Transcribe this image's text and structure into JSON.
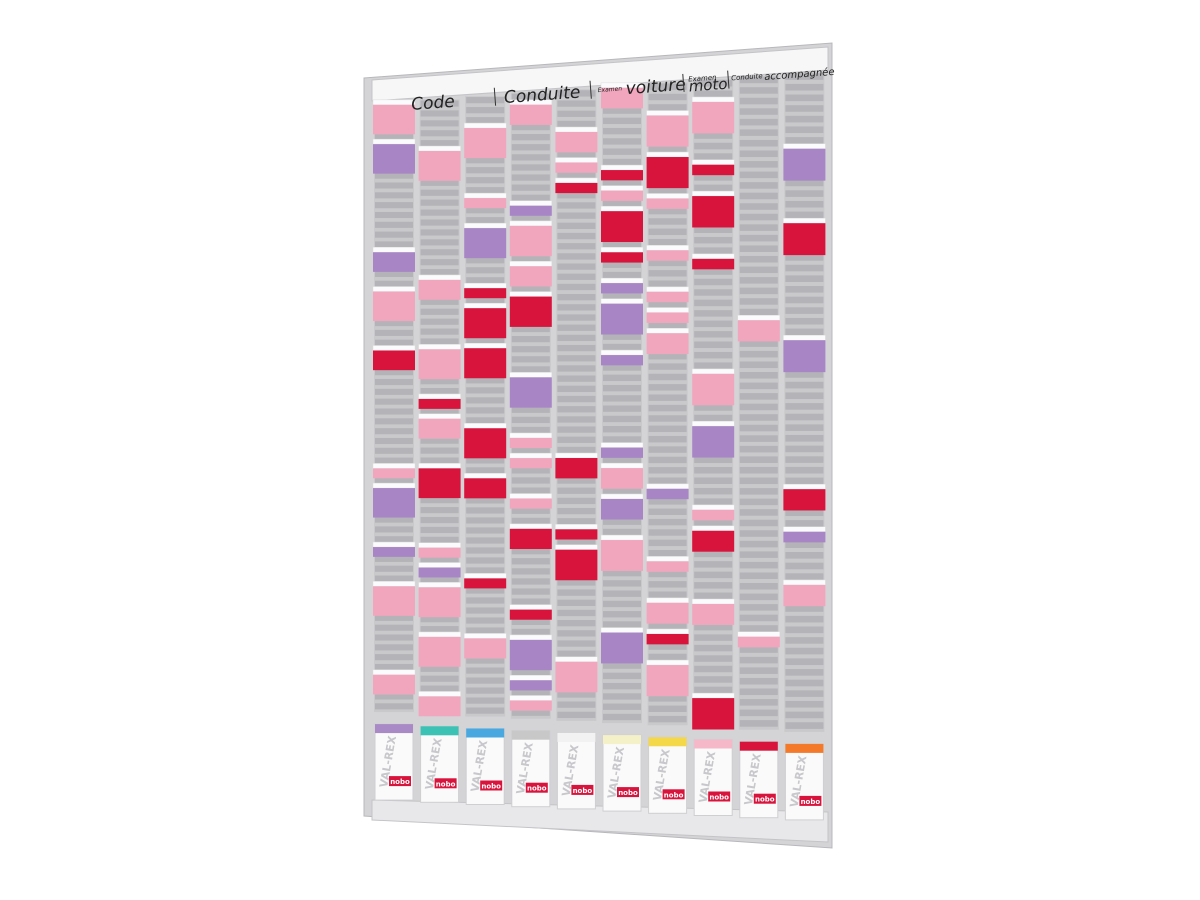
{
  "header": {
    "sections": [
      {
        "text": "Code"
      },
      {
        "text": "Conduite"
      },
      {
        "small": "Examen",
        "text": "voiture"
      },
      {
        "small": "Examen",
        "text": "moto"
      },
      {
        "small": "Conduite",
        "text": "accompagnée"
      }
    ]
  },
  "boxes": {
    "brand": "VAL-REX",
    "logo": "nobo",
    "colors": [
      "#a98ac6",
      "#3cc2b4",
      "#4aa8e0",
      "#c8c8c8",
      "#f2f2f2",
      "#f4f0c8",
      "#f5d84a",
      "#f5b8c8",
      "#d8143c",
      "#f47a2a"
    ]
  }
}
